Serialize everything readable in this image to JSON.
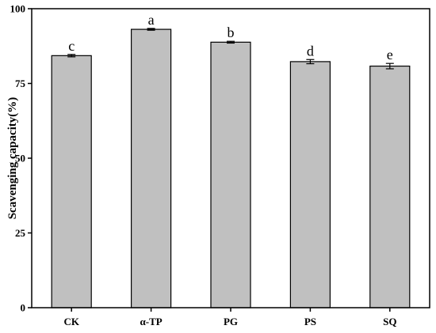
{
  "chart_data": {
    "type": "bar",
    "title": "",
    "xlabel": "",
    "ylabel": "Scavenging capacity(%)",
    "ylim": [
      0,
      100
    ],
    "yticks": [
      0,
      25,
      50,
      75,
      100
    ],
    "grid": false,
    "categories": [
      "CK",
      "α-TP",
      "PG",
      "PS",
      "SQ"
    ],
    "values": [
      84.3,
      93.1,
      88.8,
      82.3,
      80.8
    ],
    "errors": [
      0.4,
      0.3,
      0.3,
      0.7,
      0.9
    ],
    "significance": [
      "c",
      "a",
      "b",
      "d",
      "e"
    ],
    "colors": {
      "bar_fill": "#c0c0c0",
      "bar_stroke": "#000000",
      "axis": "#000000"
    }
  }
}
